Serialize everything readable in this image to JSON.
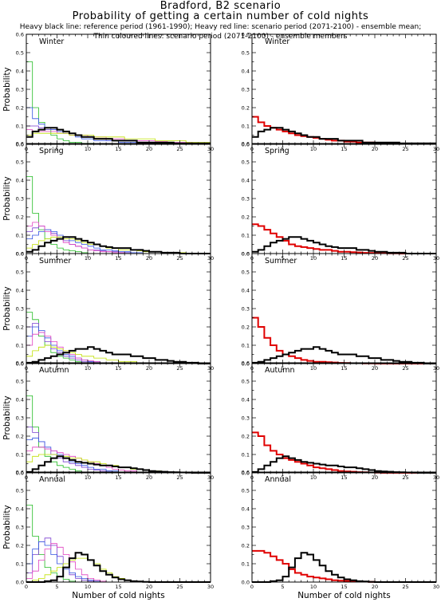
{
  "header": {
    "title_line1": "Bradford, B2 scenario",
    "title_line2": "Probability of getting a certain number of cold nights",
    "desc_line1": "Heavy black line: reference period (1961-1990); Heavy red line: scenario period (2071-2100) - ensemble mean;",
    "desc_line2": "Thin coloured lines: scenario period (2071-2100) - ensemble members"
  },
  "axes": {
    "ylabel": "Probability",
    "xlabel": "Number of cold nights",
    "xlim": [
      0,
      30
    ],
    "ylim": [
      0,
      0.6
    ],
    "xticks": [
      "0",
      "5",
      "10",
      "15",
      "20",
      "25",
      "30"
    ],
    "yticks": [
      "0.0",
      "0.1",
      "0.2",
      "0.3",
      "0.4",
      "0.5",
      "0.6"
    ]
  },
  "colors": {
    "reference": "#000000",
    "scenario_mean": "#e00000",
    "members": [
      "#22bb22",
      "#7a3fd0",
      "#3050e0",
      "#e040c0",
      "#c0e000",
      "#8888ff",
      "#ff9900",
      "#00aacc"
    ]
  },
  "chart_data": {
    "type": "step",
    "bins": [
      0,
      1,
      2,
      3,
      4,
      5,
      6,
      7,
      8,
      9,
      10,
      11,
      12,
      13,
      14,
      15,
      16,
      17,
      18,
      19,
      20,
      21,
      22,
      23,
      24,
      25,
      26,
      27,
      28,
      29
    ],
    "panels": [
      {
        "season": "Winter",
        "reference": [
          0.04,
          0.07,
          0.08,
          0.09,
          0.09,
          0.08,
          0.07,
          0.06,
          0.05,
          0.04,
          0.04,
          0.03,
          0.03,
          0.03,
          0.02,
          0.02,
          0.02,
          0.02,
          0.01,
          0.01,
          0.01,
          0.01,
          0.01,
          0.01,
          0.005,
          0.005,
          0.005,
          0.005,
          0.005,
          0.005
        ],
        "scenario_mean": [
          0.15,
          0.12,
          0.1,
          0.09,
          0.08,
          0.07,
          0.06,
          0.05,
          0.045,
          0.04,
          0.035,
          0.03,
          0.025,
          0.02,
          0.02,
          0.015,
          0.015,
          0.01,
          0.01,
          0.01,
          0.008,
          0.006,
          0.005,
          0.004,
          0.003,
          0.003,
          0.002,
          0.002,
          0.002,
          0.002
        ],
        "members": [
          [
            0.45,
            0.2,
            0.12,
            0.08,
            0.05,
            0.03,
            0.02,
            0.01,
            0.01,
            0.005,
            0.005,
            0,
            0,
            0,
            0,
            0,
            0,
            0,
            0,
            0,
            0,
            0,
            0,
            0,
            0,
            0,
            0,
            0,
            0,
            0
          ],
          [
            0.1,
            0.1,
            0.09,
            0.08,
            0.08,
            0.07,
            0.06,
            0.05,
            0.05,
            0.04,
            0.04,
            0.03,
            0.03,
            0.02,
            0.02,
            0.02,
            0.02,
            0.02,
            0.01,
            0.01,
            0.01,
            0.01,
            0.01,
            0.01,
            0.005,
            0.005,
            0.005,
            0.005,
            0.005,
            0.005
          ],
          [
            0.2,
            0.14,
            0.11,
            0.09,
            0.08,
            0.07,
            0.06,
            0.05,
            0.04,
            0.03,
            0.03,
            0.02,
            0.02,
            0.02,
            0.02,
            0.01,
            0.01,
            0.01,
            0.01,
            0.01,
            0.005,
            0.005,
            0.005,
            0,
            0,
            0,
            0,
            0,
            0,
            0
          ],
          [
            0.08,
            0.07,
            0.07,
            0.07,
            0.07,
            0.06,
            0.06,
            0.05,
            0.05,
            0.05,
            0.04,
            0.04,
            0.04,
            0.03,
            0.03,
            0.03,
            0.02,
            0.02,
            0.02,
            0.02,
            0.02,
            0.015,
            0.015,
            0.01,
            0.01,
            0.01,
            0.01,
            0.005,
            0.005,
            0.005
          ],
          [
            0.05,
            0.06,
            0.06,
            0.06,
            0.06,
            0.06,
            0.06,
            0.05,
            0.05,
            0.05,
            0.05,
            0.04,
            0.04,
            0.04,
            0.04,
            0.04,
            0.03,
            0.03,
            0.03,
            0.03,
            0.03,
            0.02,
            0.02,
            0.02,
            0.02,
            0.02,
            0.01,
            0.01,
            0.01,
            0.01
          ]
        ]
      },
      {
        "season": "Spring",
        "reference": [
          0.01,
          0.02,
          0.04,
          0.06,
          0.07,
          0.08,
          0.09,
          0.09,
          0.08,
          0.07,
          0.06,
          0.05,
          0.04,
          0.035,
          0.03,
          0.03,
          0.03,
          0.02,
          0.02,
          0.015,
          0.01,
          0.01,
          0.005,
          0.005,
          0.005,
          0,
          0,
          0,
          0,
          0
        ],
        "scenario_mean": [
          0.16,
          0.15,
          0.13,
          0.11,
          0.09,
          0.07,
          0.05,
          0.04,
          0.035,
          0.03,
          0.025,
          0.02,
          0.02,
          0.015,
          0.01,
          0.01,
          0.008,
          0.006,
          0.004,
          0.003,
          0.002,
          0.002,
          0.001,
          0.001,
          0,
          0,
          0,
          0,
          0,
          0
        ],
        "members": [
          [
            0.42,
            0.22,
            0.13,
            0.08,
            0.05,
            0.03,
            0.02,
            0.015,
            0.01,
            0.005,
            0,
            0,
            0,
            0,
            0,
            0,
            0,
            0,
            0,
            0,
            0,
            0,
            0,
            0,
            0,
            0,
            0,
            0,
            0,
            0
          ],
          [
            0.12,
            0.14,
            0.15,
            0.13,
            0.11,
            0.09,
            0.07,
            0.05,
            0.04,
            0.03,
            0.02,
            0.02,
            0.015,
            0.01,
            0.01,
            0.005,
            0.005,
            0,
            0,
            0,
            0,
            0,
            0,
            0,
            0,
            0,
            0,
            0,
            0,
            0
          ],
          [
            0.08,
            0.1,
            0.12,
            0.13,
            0.12,
            0.1,
            0.09,
            0.07,
            0.06,
            0.05,
            0.04,
            0.03,
            0.02,
            0.02,
            0.015,
            0.01,
            0.01,
            0.005,
            0.005,
            0,
            0,
            0,
            0,
            0,
            0,
            0,
            0,
            0,
            0,
            0
          ],
          [
            0.15,
            0.17,
            0.15,
            0.12,
            0.1,
            0.08,
            0.06,
            0.05,
            0.04,
            0.03,
            0.02,
            0.015,
            0.01,
            0.01,
            0.005,
            0.005,
            0,
            0,
            0,
            0,
            0,
            0,
            0,
            0,
            0,
            0,
            0,
            0,
            0,
            0
          ],
          [
            0.03,
            0.05,
            0.07,
            0.08,
            0.09,
            0.09,
            0.08,
            0.08,
            0.07,
            0.06,
            0.05,
            0.05,
            0.04,
            0.03,
            0.03,
            0.02,
            0.02,
            0.02,
            0.015,
            0.01,
            0.01,
            0.01,
            0.005,
            0.005,
            0.005,
            0.005,
            0,
            0,
            0,
            0
          ]
        ]
      },
      {
        "season": "Summer",
        "reference": [
          0.005,
          0.01,
          0.02,
          0.03,
          0.04,
          0.05,
          0.06,
          0.07,
          0.08,
          0.08,
          0.09,
          0.08,
          0.07,
          0.06,
          0.05,
          0.05,
          0.05,
          0.04,
          0.04,
          0.03,
          0.03,
          0.02,
          0.02,
          0.015,
          0.01,
          0.01,
          0.005,
          0.005,
          0,
          0
        ],
        "scenario_mean": [
          0.25,
          0.2,
          0.14,
          0.1,
          0.07,
          0.05,
          0.04,
          0.03,
          0.02,
          0.015,
          0.01,
          0.01,
          0.008,
          0.006,
          0.004,
          0.003,
          0.002,
          0.002,
          0.001,
          0.001,
          0,
          0,
          0,
          0,
          0,
          0,
          0,
          0,
          0,
          0
        ],
        "members": [
          [
            0.28,
            0.24,
            0.15,
            0.1,
            0.06,
            0.04,
            0.03,
            0.02,
            0.01,
            0.005,
            0,
            0,
            0,
            0,
            0,
            0,
            0,
            0,
            0,
            0,
            0,
            0,
            0,
            0,
            0,
            0,
            0,
            0,
            0,
            0
          ],
          [
            0.2,
            0.22,
            0.17,
            0.12,
            0.08,
            0.06,
            0.04,
            0.03,
            0.02,
            0.01,
            0.01,
            0.005,
            0,
            0,
            0,
            0,
            0,
            0,
            0,
            0,
            0,
            0,
            0,
            0,
            0,
            0,
            0,
            0,
            0,
            0
          ],
          [
            0.15,
            0.2,
            0.18,
            0.14,
            0.1,
            0.07,
            0.05,
            0.04,
            0.03,
            0.02,
            0.01,
            0.01,
            0.005,
            0,
            0,
            0,
            0,
            0,
            0,
            0,
            0,
            0,
            0,
            0,
            0,
            0,
            0,
            0,
            0,
            0
          ],
          [
            0.1,
            0.16,
            0.17,
            0.15,
            0.12,
            0.09,
            0.07,
            0.05,
            0.03,
            0.02,
            0.015,
            0.01,
            0.005,
            0,
            0,
            0,
            0,
            0,
            0,
            0,
            0,
            0,
            0,
            0,
            0,
            0,
            0,
            0,
            0,
            0
          ],
          [
            0.04,
            0.07,
            0.09,
            0.1,
            0.09,
            0.08,
            0.07,
            0.06,
            0.05,
            0.04,
            0.04,
            0.03,
            0.03,
            0.02,
            0.02,
            0.01,
            0.01,
            0.01,
            0.005,
            0.005,
            0,
            0,
            0,
            0,
            0,
            0,
            0,
            0,
            0,
            0
          ]
        ]
      },
      {
        "season": "Autumn",
        "reference": [
          0.005,
          0.02,
          0.04,
          0.06,
          0.08,
          0.09,
          0.08,
          0.07,
          0.06,
          0.055,
          0.05,
          0.045,
          0.04,
          0.04,
          0.035,
          0.03,
          0.03,
          0.025,
          0.02,
          0.015,
          0.01,
          0.008,
          0.006,
          0.004,
          0.003,
          0.002,
          0.001,
          0,
          0,
          0
        ],
        "scenario_mean": [
          0.22,
          0.2,
          0.15,
          0.12,
          0.1,
          0.08,
          0.07,
          0.06,
          0.05,
          0.04,
          0.03,
          0.025,
          0.02,
          0.015,
          0.01,
          0.008,
          0.006,
          0.004,
          0.003,
          0.002,
          0.001,
          0,
          0,
          0,
          0,
          0,
          0,
          0,
          0,
          0
        ],
        "members": [
          [
            0.42,
            0.25,
            0.14,
            0.09,
            0.06,
            0.04,
            0.03,
            0.02,
            0.01,
            0.005,
            0,
            0,
            0,
            0,
            0,
            0,
            0,
            0,
            0,
            0,
            0,
            0,
            0,
            0,
            0,
            0,
            0,
            0,
            0,
            0
          ],
          [
            0.25,
            0.22,
            0.17,
            0.13,
            0.1,
            0.08,
            0.06,
            0.05,
            0.04,
            0.03,
            0.02,
            0.015,
            0.01,
            0.01,
            0.005,
            0,
            0,
            0,
            0,
            0,
            0,
            0,
            0,
            0,
            0,
            0,
            0,
            0,
            0,
            0
          ],
          [
            0.18,
            0.19,
            0.17,
            0.14,
            0.12,
            0.1,
            0.08,
            0.06,
            0.05,
            0.04,
            0.03,
            0.02,
            0.02,
            0.01,
            0.01,
            0.005,
            0,
            0,
            0,
            0,
            0,
            0,
            0,
            0,
            0,
            0,
            0,
            0,
            0,
            0
          ],
          [
            0.12,
            0.14,
            0.14,
            0.13,
            0.12,
            0.11,
            0.1,
            0.09,
            0.08,
            0.07,
            0.06,
            0.05,
            0.04,
            0.03,
            0.02,
            0.015,
            0.01,
            0.01,
            0.005,
            0,
            0,
            0,
            0,
            0,
            0,
            0,
            0,
            0,
            0,
            0
          ],
          [
            0.06,
            0.09,
            0.1,
            0.1,
            0.1,
            0.09,
            0.09,
            0.08,
            0.08,
            0.07,
            0.06,
            0.06,
            0.05,
            0.04,
            0.04,
            0.03,
            0.03,
            0.02,
            0.02,
            0.015,
            0.01,
            0.01,
            0.005,
            0.005,
            0,
            0,
            0,
            0,
            0,
            0
          ]
        ]
      },
      {
        "season": "Annual",
        "reference": [
          0,
          0,
          0,
          0.005,
          0.01,
          0.03,
          0.08,
          0.13,
          0.16,
          0.15,
          0.12,
          0.09,
          0.06,
          0.04,
          0.025,
          0.015,
          0.01,
          0.005,
          0.003,
          0.001,
          0,
          0,
          0,
          0,
          0,
          0,
          0,
          0,
          0,
          0
        ],
        "scenario_mean": [
          0.17,
          0.17,
          0.16,
          0.14,
          0.12,
          0.1,
          0.07,
          0.05,
          0.04,
          0.03,
          0.025,
          0.02,
          0.015,
          0.01,
          0.008,
          0.006,
          0.004,
          0.003,
          0.002,
          0.001,
          0,
          0,
          0,
          0,
          0,
          0,
          0,
          0,
          0,
          0
        ],
        "members": [
          [
            0.42,
            0.25,
            0.15,
            0.08,
            0.05,
            0.03,
            0.015,
            0.005,
            0,
            0,
            0,
            0,
            0,
            0,
            0,
            0,
            0,
            0,
            0,
            0,
            0,
            0,
            0,
            0,
            0,
            0,
            0,
            0,
            0,
            0
          ],
          [
            0.05,
            0.15,
            0.22,
            0.24,
            0.2,
            0.14,
            0.08,
            0.04,
            0.02,
            0.01,
            0.005,
            0,
            0,
            0,
            0,
            0,
            0,
            0,
            0,
            0,
            0,
            0,
            0,
            0,
            0,
            0,
            0,
            0,
            0,
            0
          ],
          [
            0.1,
            0.18,
            0.22,
            0.2,
            0.15,
            0.1,
            0.07,
            0.05,
            0.03,
            0.02,
            0.01,
            0.005,
            0,
            0,
            0,
            0,
            0,
            0,
            0,
            0,
            0,
            0,
            0,
            0,
            0,
            0,
            0,
            0,
            0,
            0
          ],
          [
            0.02,
            0.06,
            0.12,
            0.18,
            0.21,
            0.19,
            0.15,
            0.11,
            0.07,
            0.04,
            0.02,
            0.01,
            0.005,
            0,
            0,
            0,
            0,
            0,
            0,
            0,
            0,
            0,
            0,
            0,
            0,
            0,
            0,
            0,
            0,
            0
          ],
          [
            0,
            0.01,
            0.02,
            0.04,
            0.06,
            0.08,
            0.1,
            0.12,
            0.13,
            0.13,
            0.12,
            0.1,
            0.07,
            0.05,
            0.03,
            0.02,
            0.01,
            0.005,
            0,
            0,
            0,
            0,
            0,
            0,
            0,
            0,
            0,
            0,
            0,
            0
          ]
        ]
      }
    ]
  }
}
